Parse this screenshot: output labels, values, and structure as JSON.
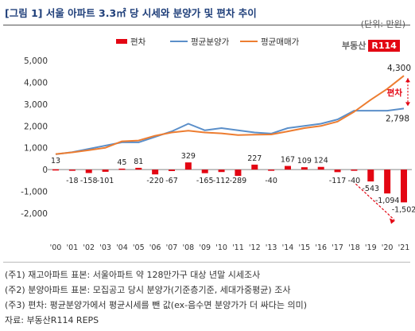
{
  "header": {
    "title": "[그림 1] 서울 아파트 3.3㎡ 당 시세와 분양가 및 편차 추이",
    "unit": "(단위: 만원)",
    "brand": "부동산",
    "brand_box": "R114"
  },
  "chart_data": {
    "type": "bar",
    "categories": [
      "'00",
      "'01",
      "'02",
      "'03",
      "'04",
      "'05",
      "'06",
      "'07",
      "'08",
      "'09",
      "'10",
      "'11",
      "'12",
      "'13",
      "'14",
      "'15",
      "'16",
      "'17",
      "'18",
      "'19",
      "'20",
      "'21"
    ],
    "series": [
      {
        "name": "편차",
        "type": "bar",
        "color": "#e30613",
        "values": [
          13,
          -18,
          -158,
          -101,
          45,
          81,
          -220,
          -67,
          329,
          -165,
          -112,
          -289,
          227,
          -40,
          167,
          109,
          124,
          -117,
          -40,
          -543,
          -1094,
          -1502
        ]
      },
      {
        "name": "평균분양가",
        "type": "line",
        "color": "#5b8fc9",
        "values": [
          700,
          800,
          950,
          1100,
          1250,
          1250,
          1500,
          1750,
          2100,
          1800,
          1900,
          1800,
          1700,
          1650,
          1900,
          2000,
          2100,
          2300,
          2700,
          2700,
          2700,
          2798
        ]
      },
      {
        "name": "평균매매가",
        "type": "line",
        "color": "#ed7d31",
        "values": [
          713,
          790,
          890,
          1000,
          1295,
          1331,
          1550,
          1700,
          1780,
          1700,
          1660,
          1580,
          1600,
          1610,
          1750,
          1900,
          2000,
          2200,
          2650,
          3200,
          3700,
          4300
        ]
      }
    ],
    "data_labels": [
      "13",
      "-18",
      "-158",
      "-101",
      "45",
      "81",
      "-220",
      "-67",
      "329",
      "-165",
      "-112",
      "-289",
      "227",
      "-40",
      "167",
      "109",
      "124",
      "-117",
      "-40",
      "-543",
      "-1,094",
      "-1,502"
    ],
    "end_labels": {
      "sale": "4,300",
      "presale": "2,798"
    },
    "callout": "편차",
    "ylim": [
      -2000,
      5000
    ],
    "yticks": [
      "5,000",
      "4,000",
      "3,000",
      "2,000",
      "1,000",
      "0",
      "-1,000",
      "-2,000"
    ],
    "grid": false,
    "legend": "top"
  },
  "notes": [
    "(주1) 재고아파트 표본: 서울아파트 약 128만가구 대상 년말 시세조사",
    "(주2) 분양아파트 표본: 모집공고 당시 분양가(기준층기준, 세대가중평균) 조사",
    "(주3) 편차: 평균분양가에서 평균시세를 뺀 값(ex-음수면 분양가가 더 싸다는 의미)",
    "자료: 부동산R114 REPS"
  ]
}
